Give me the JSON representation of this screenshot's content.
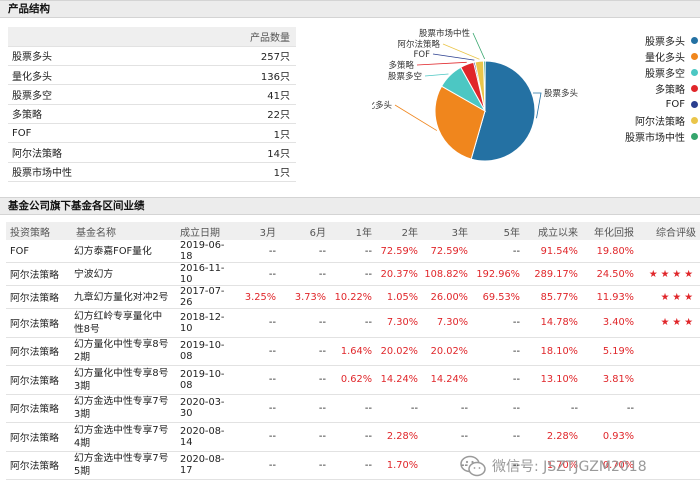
{
  "section1": {
    "title": "产品结构"
  },
  "product_table": {
    "count_header": "产品数量",
    "rows": [
      {
        "name": "股票多头",
        "count": "257只"
      },
      {
        "name": "量化多头",
        "count": "136只"
      },
      {
        "name": "股票多空",
        "count": "41只"
      },
      {
        "name": "多策略",
        "count": "22只"
      },
      {
        "name": "FOF",
        "count": "1只"
      },
      {
        "name": "阿尔法策略",
        "count": "14只"
      },
      {
        "name": "股票市场中性",
        "count": "1只"
      }
    ]
  },
  "chart_data": {
    "type": "pie",
    "slices": [
      {
        "label": "股票多头",
        "value": 257,
        "color": "#2471a3"
      },
      {
        "label": "量化多头",
        "value": 136,
        "color": "#f0861d"
      },
      {
        "label": "股票多空",
        "value": 41,
        "color": "#4cc7c3"
      },
      {
        "label": "多策略",
        "value": 22,
        "color": "#e0262a"
      },
      {
        "label": "FOF",
        "value": 1,
        "color": "#2b3f8f"
      },
      {
        "label": "阿尔法策略",
        "value": 14,
        "color": "#eac54a"
      },
      {
        "label": "股票市场中性",
        "value": 1,
        "color": "#35a56c"
      }
    ],
    "legend": "right"
  },
  "section2": {
    "title": "基金公司旗下基金各区间业绩"
  },
  "perf_table": {
    "headers": [
      "投资策略",
      "基金名称",
      "成立日期",
      "3月",
      "6月",
      "1年",
      "2年",
      "3年",
      "5年",
      "成立以来",
      "年化回报",
      "综合评级"
    ],
    "rows": [
      {
        "strategy": "FOF",
        "name": [
          "幻方泰嘉FOF量化"
        ],
        "date": "2019-06-18",
        "m3": "--",
        "m6": "--",
        "y1": "--",
        "y2": "72.59%",
        "y3": "72.59%",
        "y5": "--",
        "since": "91.54%",
        "annual": "19.80%",
        "stars": ""
      },
      {
        "strategy": "阿尔法策略",
        "name": [
          "宁波幻方"
        ],
        "date": "2016-11-10",
        "m3": "--",
        "m6": "--",
        "y1": "--",
        "y2": "20.37%",
        "y3": "108.82%",
        "y5": "192.96%",
        "since": "289.17%",
        "annual": "24.50%",
        "stars": "★★★★"
      },
      {
        "strategy": "阿尔法策略",
        "name": [
          "九章幻方量化对冲2号"
        ],
        "date": "2017-07-26",
        "m3": "3.25%",
        "m6": "3.73%",
        "y1": "10.22%",
        "y2": "1.05%",
        "y3": "26.00%",
        "y5": "69.53%",
        "since": "85.77%",
        "annual": "11.93%",
        "stars": "★★★"
      },
      {
        "strategy": "阿尔法策略",
        "name": [
          "幻方红岭专享量化中",
          "性8号"
        ],
        "date": "2018-12-10",
        "m3": "--",
        "m6": "--",
        "y1": "--",
        "y2": "7.30%",
        "y3": "7.30%",
        "y5": "--",
        "since": "14.78%",
        "annual": "3.40%",
        "stars": "★★★"
      },
      {
        "strategy": "阿尔法策略",
        "name": [
          "幻方量化中性专享8号",
          "2期"
        ],
        "date": "2019-10-08",
        "m3": "--",
        "m6": "--",
        "y1": "1.64%",
        "y2": "20.02%",
        "y3": "20.02%",
        "y5": "--",
        "since": "18.10%",
        "annual": "5.19%",
        "stars": ""
      },
      {
        "strategy": "阿尔法策略",
        "name": [
          "幻方量化中性专享8号",
          "3期"
        ],
        "date": "2019-10-08",
        "m3": "--",
        "m6": "--",
        "y1": "0.62%",
        "y2": "14.24%",
        "y3": "14.24%",
        "y5": "--",
        "since": "13.10%",
        "annual": "3.81%",
        "stars": ""
      },
      {
        "strategy": "阿尔法策略",
        "name": [
          "幻方金选中性专享7号",
          "3期"
        ],
        "date": "2020-03-30",
        "m3": "--",
        "m6": "--",
        "y1": "--",
        "y2": "--",
        "y3": "--",
        "y5": "--",
        "since": "--",
        "annual": "--",
        "stars": ""
      },
      {
        "strategy": "阿尔法策略",
        "name": [
          "幻方金选中性专享7号",
          "4期"
        ],
        "date": "2020-08-14",
        "m3": "--",
        "m6": "--",
        "y1": "--",
        "y2": "2.28%",
        "y3": "--",
        "y5": "--",
        "since": "2.28%",
        "annual": "0.93%",
        "stars": ""
      },
      {
        "strategy": "阿尔法策略",
        "name": [
          "幻方金选中性专享7号",
          "5期"
        ],
        "date": "2020-08-17",
        "m3": "--",
        "m6": "--",
        "y1": "--",
        "y2": "1.70%",
        "y3": "--",
        "y5": "--",
        "since": "1.70%",
        "annual": "0.70%",
        "stars": ""
      }
    ]
  },
  "watermark": {
    "text": "微信号: JSZTJGZM2018",
    "icon": "wechat-icon"
  }
}
